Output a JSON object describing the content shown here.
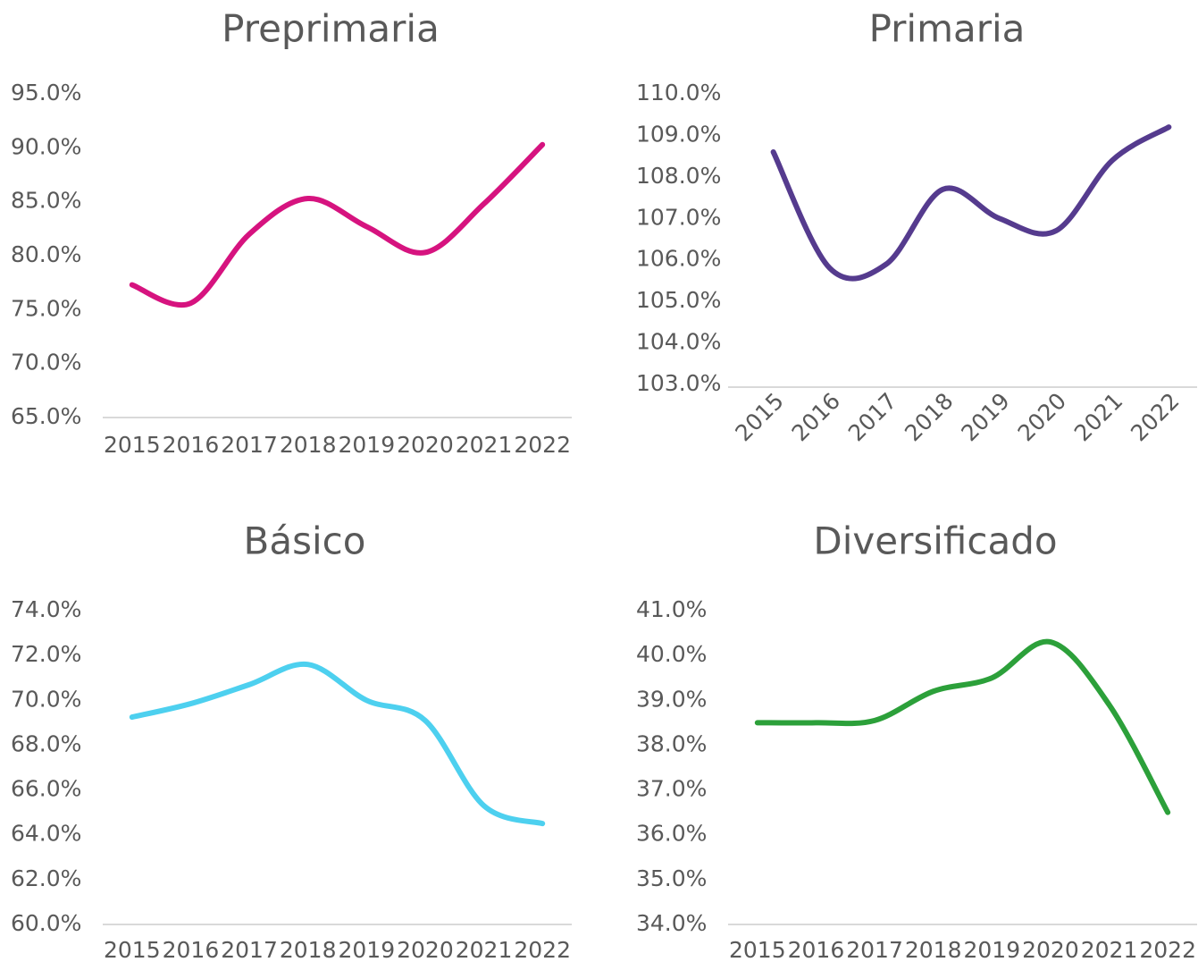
{
  "chart_data": [
    {
      "type": "line",
      "title": "Preprimaria",
      "color": "#d6137f",
      "categories": [
        "2015",
        "2016",
        "2017",
        "2018",
        "2019",
        "2020",
        "2021",
        "2022"
      ],
      "values": [
        77.3,
        75.6,
        82.0,
        85.3,
        82.7,
        80.3,
        84.8,
        90.3
      ],
      "ylim": [
        65,
        95
      ],
      "yticks": [
        {
          "value": 65,
          "label": "65.0%"
        },
        {
          "value": 70,
          "label": "70.0%"
        },
        {
          "value": 75,
          "label": "75.0%"
        },
        {
          "value": 80,
          "label": "80.0%"
        },
        {
          "value": 85,
          "label": "85.0%"
        },
        {
          "value": 90,
          "label": "90.0%"
        },
        {
          "value": 95,
          "label": "95.0%"
        }
      ],
      "grid": false
    },
    {
      "type": "line",
      "title": "Primaria",
      "color": "#553b8e",
      "categories": [
        "2015",
        "2016",
        "2017",
        "2018",
        "2019",
        "2020",
        "2021",
        "2022"
      ],
      "values": [
        108.6,
        105.8,
        105.9,
        107.7,
        107.0,
        106.7,
        108.4,
        109.2
      ],
      "ylim": [
        103,
        110
      ],
      "yticks": [
        {
          "value": 103,
          "label": "103.0%"
        },
        {
          "value": 104,
          "label": "104.0%"
        },
        {
          "value": 105,
          "label": "105.0%"
        },
        {
          "value": 106,
          "label": "106.0%"
        },
        {
          "value": 107,
          "label": "107.0%"
        },
        {
          "value": 108,
          "label": "108.0%"
        },
        {
          "value": 109,
          "label": "109.0%"
        },
        {
          "value": 110,
          "label": "110.0%"
        }
      ],
      "grid": false
    },
    {
      "type": "line",
      "title": "Básico",
      "color": "#4dd0ef",
      "categories": [
        "2015",
        "2016",
        "2017",
        "2018",
        "2019",
        "2020",
        "2021",
        "2022"
      ],
      "values": [
        69.25,
        69.85,
        70.7,
        71.6,
        70.0,
        69.1,
        65.3,
        64.5
      ],
      "ylim": [
        60,
        74
      ],
      "yticks": [
        {
          "value": 60,
          "label": "60.0%"
        },
        {
          "value": 62,
          "label": "62.0%"
        },
        {
          "value": 64,
          "label": "64.0%"
        },
        {
          "value": 66,
          "label": "66.0%"
        },
        {
          "value": 68,
          "label": "68.0%"
        },
        {
          "value": 70,
          "label": "70.0%"
        },
        {
          "value": 72,
          "label": "72.0%"
        },
        {
          "value": 74,
          "label": "74.0%"
        }
      ],
      "grid": false
    },
    {
      "type": "line",
      "title": "Diversificado",
      "color": "#2ca03a",
      "categories": [
        "2015",
        "2016",
        "2017",
        "2018",
        "2019",
        "2020",
        "2021",
        "2022"
      ],
      "values": [
        38.5,
        38.5,
        38.55,
        39.2,
        39.5,
        40.3,
        38.9,
        36.5
      ],
      "ylim": [
        34,
        41
      ],
      "yticks": [
        {
          "value": 34,
          "label": "34.0%"
        },
        {
          "value": 35,
          "label": "35.0%"
        },
        {
          "value": 36,
          "label": "36.0%"
        },
        {
          "value": 37,
          "label": "37.0%"
        },
        {
          "value": 38,
          "label": "38.0%"
        },
        {
          "value": 39,
          "label": "39.0%"
        },
        {
          "value": 40,
          "label": "40.0%"
        },
        {
          "value": 41,
          "label": "41.0%"
        }
      ],
      "grid": false
    }
  ]
}
